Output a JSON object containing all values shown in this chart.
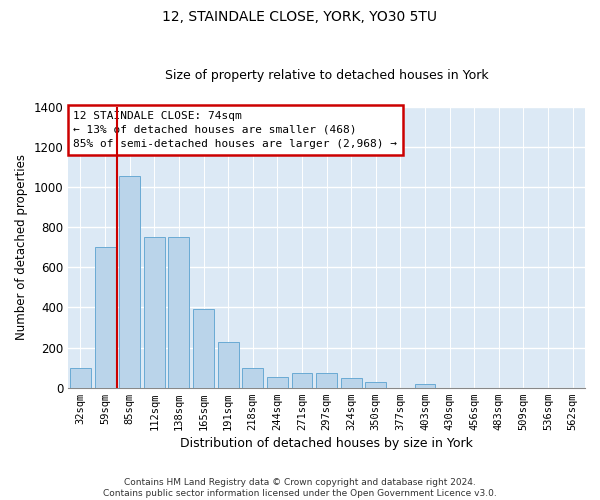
{
  "title": "12, STAINDALE CLOSE, YORK, YO30 5TU",
  "subtitle": "Size of property relative to detached houses in York",
  "xlabel": "Distribution of detached houses by size in York",
  "ylabel": "Number of detached properties",
  "footer_line1": "Contains HM Land Registry data © Crown copyright and database right 2024.",
  "footer_line2": "Contains public sector information licensed under the Open Government Licence v3.0.",
  "bar_labels": [
    "32sqm",
    "59sqm",
    "85sqm",
    "112sqm",
    "138sqm",
    "165sqm",
    "191sqm",
    "218sqm",
    "244sqm",
    "271sqm",
    "297sqm",
    "324sqm",
    "350sqm",
    "377sqm",
    "403sqm",
    "430sqm",
    "456sqm",
    "483sqm",
    "509sqm",
    "536sqm",
    "562sqm"
  ],
  "bar_values": [
    100,
    700,
    1055,
    750,
    750,
    390,
    230,
    100,
    55,
    75,
    75,
    50,
    30,
    0,
    20,
    0,
    0,
    0,
    0,
    0,
    0
  ],
  "bar_color": "#bad4ea",
  "bar_edge_color": "#6aaad4",
  "background_color": "#dce9f5",
  "grid_color": "#ffffff",
  "property_line_x": 1.5,
  "annotation_text_line1": "12 STAINDALE CLOSE: 74sqm",
  "annotation_text_line2": "← 13% of detached houses are smaller (468)",
  "annotation_text_line3": "85% of semi-detached houses are larger (2,968) →",
  "annotation_box_facecolor": "#ffffff",
  "annotation_box_edgecolor": "#cc0000",
  "red_line_color": "#cc0000",
  "ylim": [
    0,
    1400
  ],
  "yticks": [
    0,
    200,
    400,
    600,
    800,
    1000,
    1200,
    1400
  ],
  "title_fontsize": 10,
  "subtitle_fontsize": 9
}
